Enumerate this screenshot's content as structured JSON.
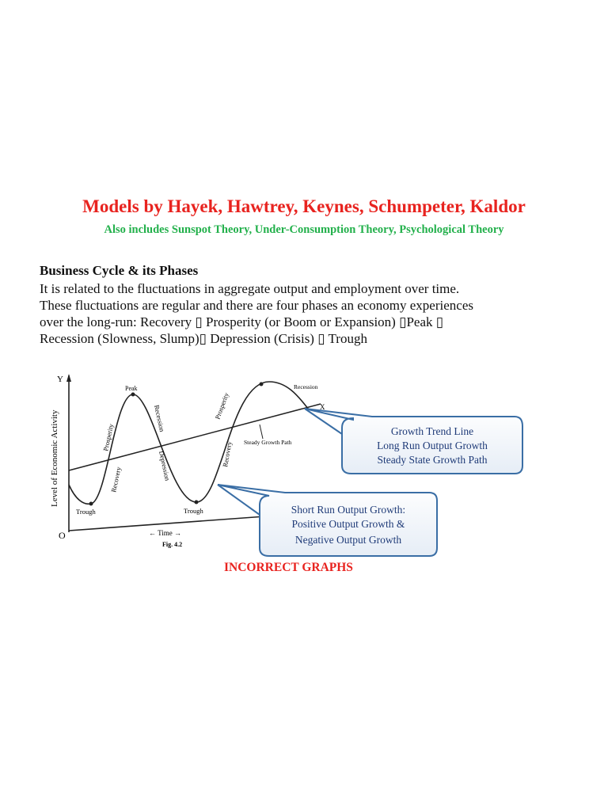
{
  "title": "Models by Hayek, Hawtrey, Keynes, Schumpeter, Kaldor",
  "subtitle": "Also includes Sunspot Theory, Under-Consumption Theory, Psychological Theory",
  "section": {
    "heading": "Business Cycle & its Phases",
    "lines": [
      "It is related to the fluctuations in aggregate output and employment over time.",
      "These fluctuations are regular and there are four phases an economy experiences",
      "over the long-run: Recovery ▯ Prosperity (or Boom or Expansion) ▯Peak ▯",
      "Recession (Slowness, Slump)▯ Depression (Crisis) ▯ Trough"
    ]
  },
  "diagram": {
    "y_axis": "Y",
    "x_axis_end": "X",
    "origin": "O",
    "y_label": "Level of Economic Activity",
    "time_label": "← Time →",
    "fig_label": "Fig. 4.2",
    "labels": {
      "peak": "Peak",
      "trough1": "Trough",
      "trough2": "Trough",
      "prosperity1": "Prosperity",
      "recovery1": "Recovery",
      "recession1": "Recession",
      "depression": "Depression",
      "prosperity2": "Prosperity",
      "recovery2": "Recovery",
      "recession2": "Recession",
      "steady": "Steady Growth Path"
    },
    "callout1": [
      "Growth Trend Line",
      "Long Run Output Growth",
      "Steady State Growth Path"
    ],
    "callout2": [
      "Short Run Output Growth:",
      "Positive Output Growth &",
      "Negative Output Growth"
    ],
    "callout_color": "#3a6ea5"
  },
  "footer": "INCORRECT GRAPHS"
}
